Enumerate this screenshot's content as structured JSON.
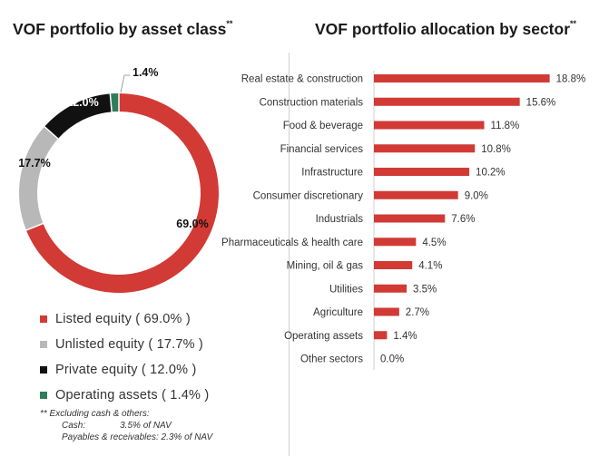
{
  "left_chart": {
    "title": "VOF portfolio by asset class",
    "title_mark": "**",
    "legend": [
      {
        "label": "Listed equity ( 69.0% )",
        "color": "#d23a35"
      },
      {
        "label": "Unlisted equity ( 17.7% )",
        "color": "#b8b8b8"
      },
      {
        "label": "Private equity ( 12.0% )",
        "color": "#111111"
      },
      {
        "label": "Operating assets ( 1.4% )",
        "color": "#2e7d5b"
      }
    ]
  },
  "right_chart": {
    "title": "VOF portfolio allocation by sector",
    "title_mark": "**"
  },
  "footnote": {
    "line1": "** Excluding cash & others:",
    "cash_label": "Cash:",
    "cash_value": "3.5% of NAV",
    "payables": "Payables & receivables: 2.3% of NAV"
  },
  "chart_data": [
    {
      "type": "pie",
      "categories": [
        "Listed equity",
        "Unlisted equity",
        "Private equity",
        "Operating assets"
      ],
      "values": [
        69.0,
        17.7,
        12.0,
        1.4
      ],
      "labels": [
        "69.0%",
        "17.7%",
        "12.0%",
        "1.4%"
      ],
      "colors": [
        "#d23a35",
        "#b8b8b8",
        "#111111",
        "#2e7d5b"
      ],
      "legend": "bottom"
    },
    {
      "type": "bar",
      "orientation": "horizontal",
      "categories": [
        "Real estate & construction",
        "Construction materials",
        "Food & beverage",
        "Financial services",
        "Infrastructure",
        "Consumer discretionary",
        "Industrials",
        "Pharmaceuticals & health care",
        "Mining, oil & gas",
        "Utilities",
        "Agriculture",
        "Operating assets",
        "Other sectors"
      ],
      "values": [
        18.8,
        15.6,
        11.8,
        10.8,
        10.2,
        9.0,
        7.6,
        4.5,
        4.1,
        3.5,
        2.7,
        1.4,
        0.0
      ],
      "labels": [
        "18.8%",
        "15.6%",
        "11.8%",
        "10.8%",
        "10.2%",
        "9.0%",
        "7.6%",
        "4.5%",
        "4.1%",
        "3.5%",
        "2.7%",
        "1.4%",
        "0.0%"
      ],
      "color": "#d23a35"
    }
  ]
}
